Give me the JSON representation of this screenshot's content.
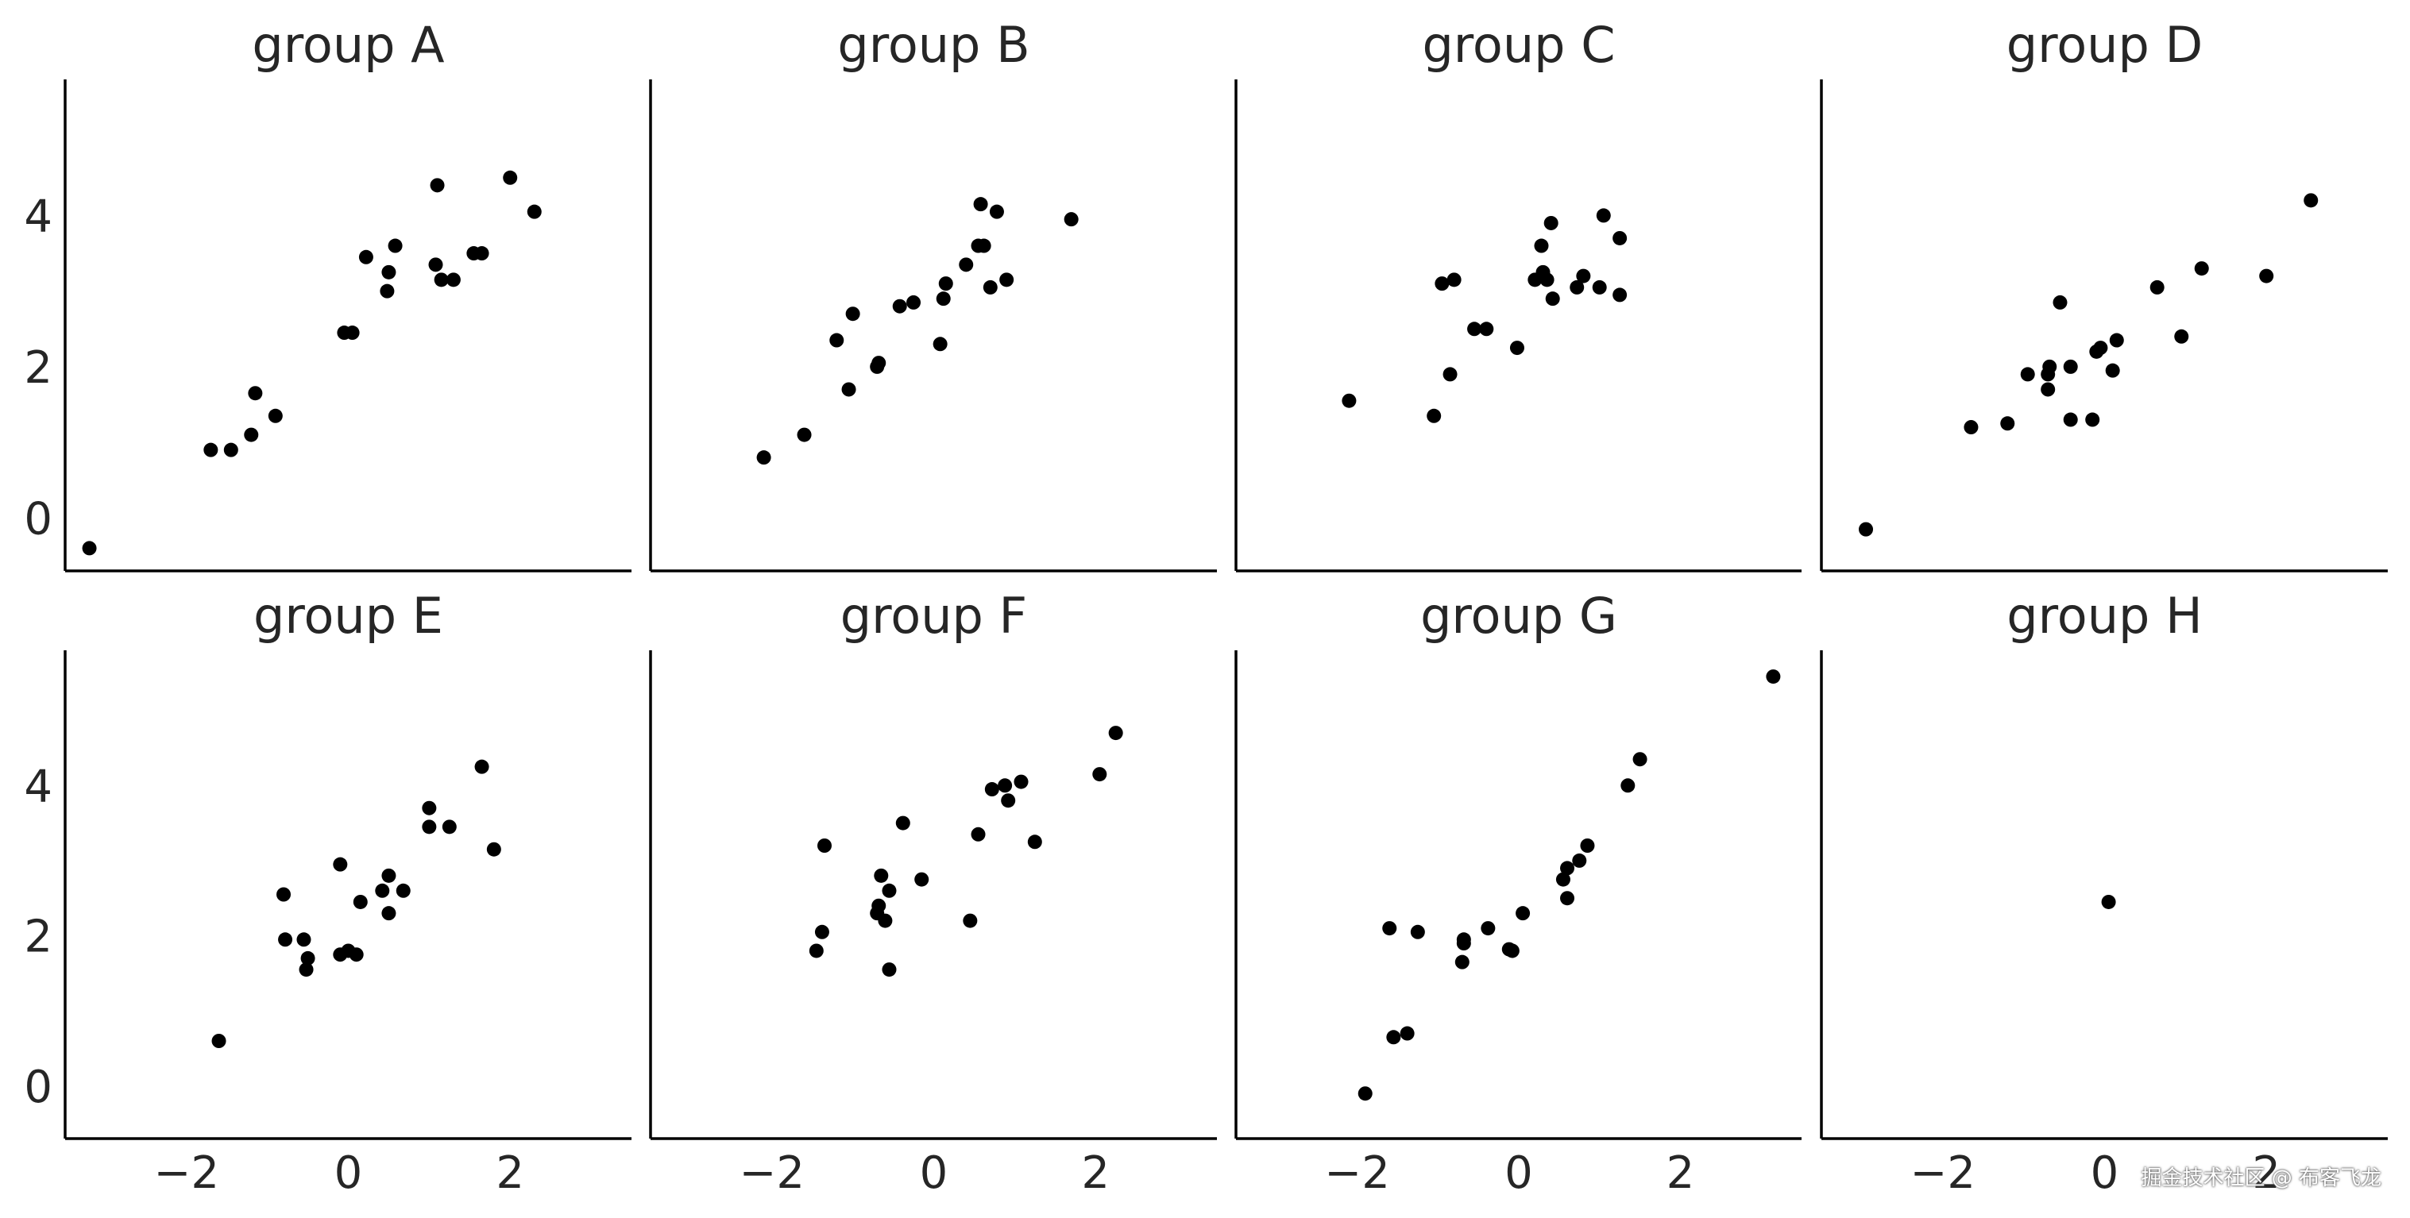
{
  "chart_data": [
    {
      "type": "scatter",
      "title": "group A",
      "xlim": [
        -3.5,
        3.5
      ],
      "ylim": [
        -0.7,
        5.8
      ],
      "yticks": [
        0,
        2,
        4
      ],
      "xticks": [],
      "points": [
        [
          -3.2,
          -0.4
        ],
        [
          -1.7,
          0.9
        ],
        [
          -1.45,
          0.9
        ],
        [
          -1.2,
          1.1
        ],
        [
          -1.15,
          1.65
        ],
        [
          -0.9,
          1.35
        ],
        [
          -0.05,
          2.45
        ],
        [
          0.05,
          2.45
        ],
        [
          0.22,
          3.45
        ],
        [
          0.48,
          3.0
        ],
        [
          0.5,
          3.25
        ],
        [
          0.58,
          3.6
        ],
        [
          1.08,
          3.35
        ],
        [
          1.1,
          4.4
        ],
        [
          1.15,
          3.15
        ],
        [
          1.3,
          3.15
        ],
        [
          1.55,
          3.5
        ],
        [
          1.65,
          3.5
        ],
        [
          2.0,
          4.5
        ],
        [
          2.3,
          4.05
        ]
      ]
    },
    {
      "type": "scatter",
      "title": "group B",
      "xlim": [
        -3.5,
        3.5
      ],
      "ylim": [
        -0.7,
        5.8
      ],
      "yticks": [],
      "xticks": [],
      "points": [
        [
          -2.1,
          0.8
        ],
        [
          -1.6,
          1.1
        ],
        [
          -1.2,
          2.35
        ],
        [
          -1.05,
          1.7
        ],
        [
          -1.0,
          2.7
        ],
        [
          -0.7,
          2.0
        ],
        [
          -0.68,
          2.05
        ],
        [
          -0.42,
          2.8
        ],
        [
          -0.25,
          2.85
        ],
        [
          0.08,
          2.3
        ],
        [
          0.12,
          2.9
        ],
        [
          0.15,
          3.1
        ],
        [
          0.4,
          3.35
        ],
        [
          0.55,
          3.6
        ],
        [
          0.58,
          4.15
        ],
        [
          0.62,
          3.6
        ],
        [
          0.7,
          3.05
        ],
        [
          0.78,
          4.05
        ],
        [
          0.9,
          3.15
        ],
        [
          1.7,
          3.95
        ]
      ]
    },
    {
      "type": "scatter",
      "title": "group C",
      "xlim": [
        -3.5,
        3.5
      ],
      "ylim": [
        -0.7,
        5.8
      ],
      "yticks": [],
      "xticks": [],
      "points": [
        [
          -2.1,
          1.55
        ],
        [
          -1.05,
          1.35
        ],
        [
          -0.95,
          3.1
        ],
        [
          -0.8,
          3.15
        ],
        [
          -0.85,
          1.9
        ],
        [
          -0.55,
          2.5
        ],
        [
          -0.4,
          2.5
        ],
        [
          -0.02,
          2.25
        ],
        [
          0.2,
          3.15
        ],
        [
          0.28,
          3.6
        ],
        [
          0.3,
          3.25
        ],
        [
          0.35,
          3.15
        ],
        [
          0.4,
          3.9
        ],
        [
          0.42,
          2.9
        ],
        [
          0.72,
          3.05
        ],
        [
          0.8,
          3.2
        ],
        [
          1.0,
          3.05
        ],
        [
          1.05,
          4.0
        ],
        [
          1.25,
          2.95
        ],
        [
          1.25,
          3.7
        ]
      ]
    },
    {
      "type": "scatter",
      "title": "group D",
      "xlim": [
        -3.5,
        3.5
      ],
      "ylim": [
        -0.7,
        5.8
      ],
      "yticks": [],
      "xticks": [],
      "points": [
        [
          -2.95,
          -0.15
        ],
        [
          -1.65,
          1.2
        ],
        [
          -1.2,
          1.25
        ],
        [
          -0.95,
          1.9
        ],
        [
          -0.7,
          1.9
        ],
        [
          -0.68,
          2.0
        ],
        [
          -0.7,
          1.7
        ],
        [
          -0.55,
          2.85
        ],
        [
          -0.42,
          1.3
        ],
        [
          -0.42,
          2.0
        ],
        [
          -0.15,
          1.3
        ],
        [
          -0.1,
          2.2
        ],
        [
          -0.05,
          2.25
        ],
        [
          0.1,
          1.95
        ],
        [
          0.15,
          2.35
        ],
        [
          0.65,
          3.05
        ],
        [
          0.95,
          2.4
        ],
        [
          1.2,
          3.3
        ],
        [
          2.0,
          3.2
        ],
        [
          2.55,
          4.2
        ]
      ]
    },
    {
      "type": "scatter",
      "title": "group E",
      "xlim": [
        -3.5,
        3.5
      ],
      "ylim": [
        -0.7,
        5.8
      ],
      "yticks": [
        0,
        2,
        4
      ],
      "xticks": [
        -2,
        0,
        2
      ],
      "points": [
        [
          -1.6,
          0.6
        ],
        [
          -0.8,
          2.55
        ],
        [
          -0.78,
          1.95
        ],
        [
          -0.55,
          1.95
        ],
        [
          -0.52,
          1.55
        ],
        [
          -0.5,
          1.7
        ],
        [
          -0.1,
          1.75
        ],
        [
          -0.1,
          2.95
        ],
        [
          0.0,
          1.8
        ],
        [
          0.1,
          1.75
        ],
        [
          0.15,
          2.45
        ],
        [
          0.42,
          2.6
        ],
        [
          0.5,
          2.8
        ],
        [
          0.5,
          2.3
        ],
        [
          0.68,
          2.6
        ],
        [
          1.0,
          3.45
        ],
        [
          1.0,
          3.7
        ],
        [
          1.25,
          3.45
        ],
        [
          1.65,
          4.25
        ],
        [
          1.8,
          3.15
        ]
      ]
    },
    {
      "type": "scatter",
      "title": "group F",
      "xlim": [
        -3.5,
        3.5
      ],
      "ylim": [
        -0.7,
        5.8
      ],
      "yticks": [],
      "xticks": [
        -2,
        0,
        2
      ],
      "points": [
        [
          -1.45,
          1.8
        ],
        [
          -1.38,
          2.05
        ],
        [
          -1.35,
          3.2
        ],
        [
          -0.7,
          2.3
        ],
        [
          -0.68,
          2.4
        ],
        [
          -0.65,
          2.8
        ],
        [
          -0.6,
          2.2
        ],
        [
          -0.55,
          2.6
        ],
        [
          -0.55,
          1.55
        ],
        [
          -0.38,
          3.5
        ],
        [
          -0.15,
          2.75
        ],
        [
          0.45,
          2.2
        ],
        [
          0.55,
          3.35
        ],
        [
          0.72,
          3.95
        ],
        [
          0.88,
          4.0
        ],
        [
          0.92,
          3.8
        ],
        [
          1.08,
          4.05
        ],
        [
          1.25,
          3.25
        ],
        [
          2.05,
          4.15
        ],
        [
          2.25,
          4.7
        ]
      ]
    },
    {
      "type": "scatter",
      "title": "group G",
      "xlim": [
        -3.5,
        3.5
      ],
      "ylim": [
        -0.7,
        5.8
      ],
      "yticks": [],
      "xticks": [
        -2,
        0,
        2
      ],
      "points": [
        [
          -1.9,
          -0.1
        ],
        [
          -1.55,
          0.65
        ],
        [
          -1.38,
          0.7
        ],
        [
          -1.6,
          2.1
        ],
        [
          -1.25,
          2.05
        ],
        [
          -0.7,
          1.65
        ],
        [
          -0.68,
          1.9
        ],
        [
          -0.68,
          1.95
        ],
        [
          -0.38,
          2.1
        ],
        [
          -0.12,
          1.82
        ],
        [
          -0.08,
          1.8
        ],
        [
          0.05,
          2.3
        ],
        [
          0.55,
          2.75
        ],
        [
          0.6,
          2.9
        ],
        [
          0.6,
          2.5
        ],
        [
          0.75,
          3.0
        ],
        [
          0.85,
          3.2
        ],
        [
          1.35,
          4.0
        ],
        [
          1.5,
          4.35
        ],
        [
          3.15,
          5.45
        ]
      ]
    },
    {
      "type": "scatter",
      "title": "group H",
      "xlim": [
        -3.5,
        3.5
      ],
      "ylim": [
        -0.7,
        5.8
      ],
      "yticks": [],
      "xticks": [
        -2,
        0,
        2
      ],
      "points": [
        [
          0.05,
          2.45
        ]
      ]
    }
  ],
  "watermark": "掘金技术社区 @ 布客飞龙",
  "marker_color": "#000000",
  "axis_color": "#000000"
}
